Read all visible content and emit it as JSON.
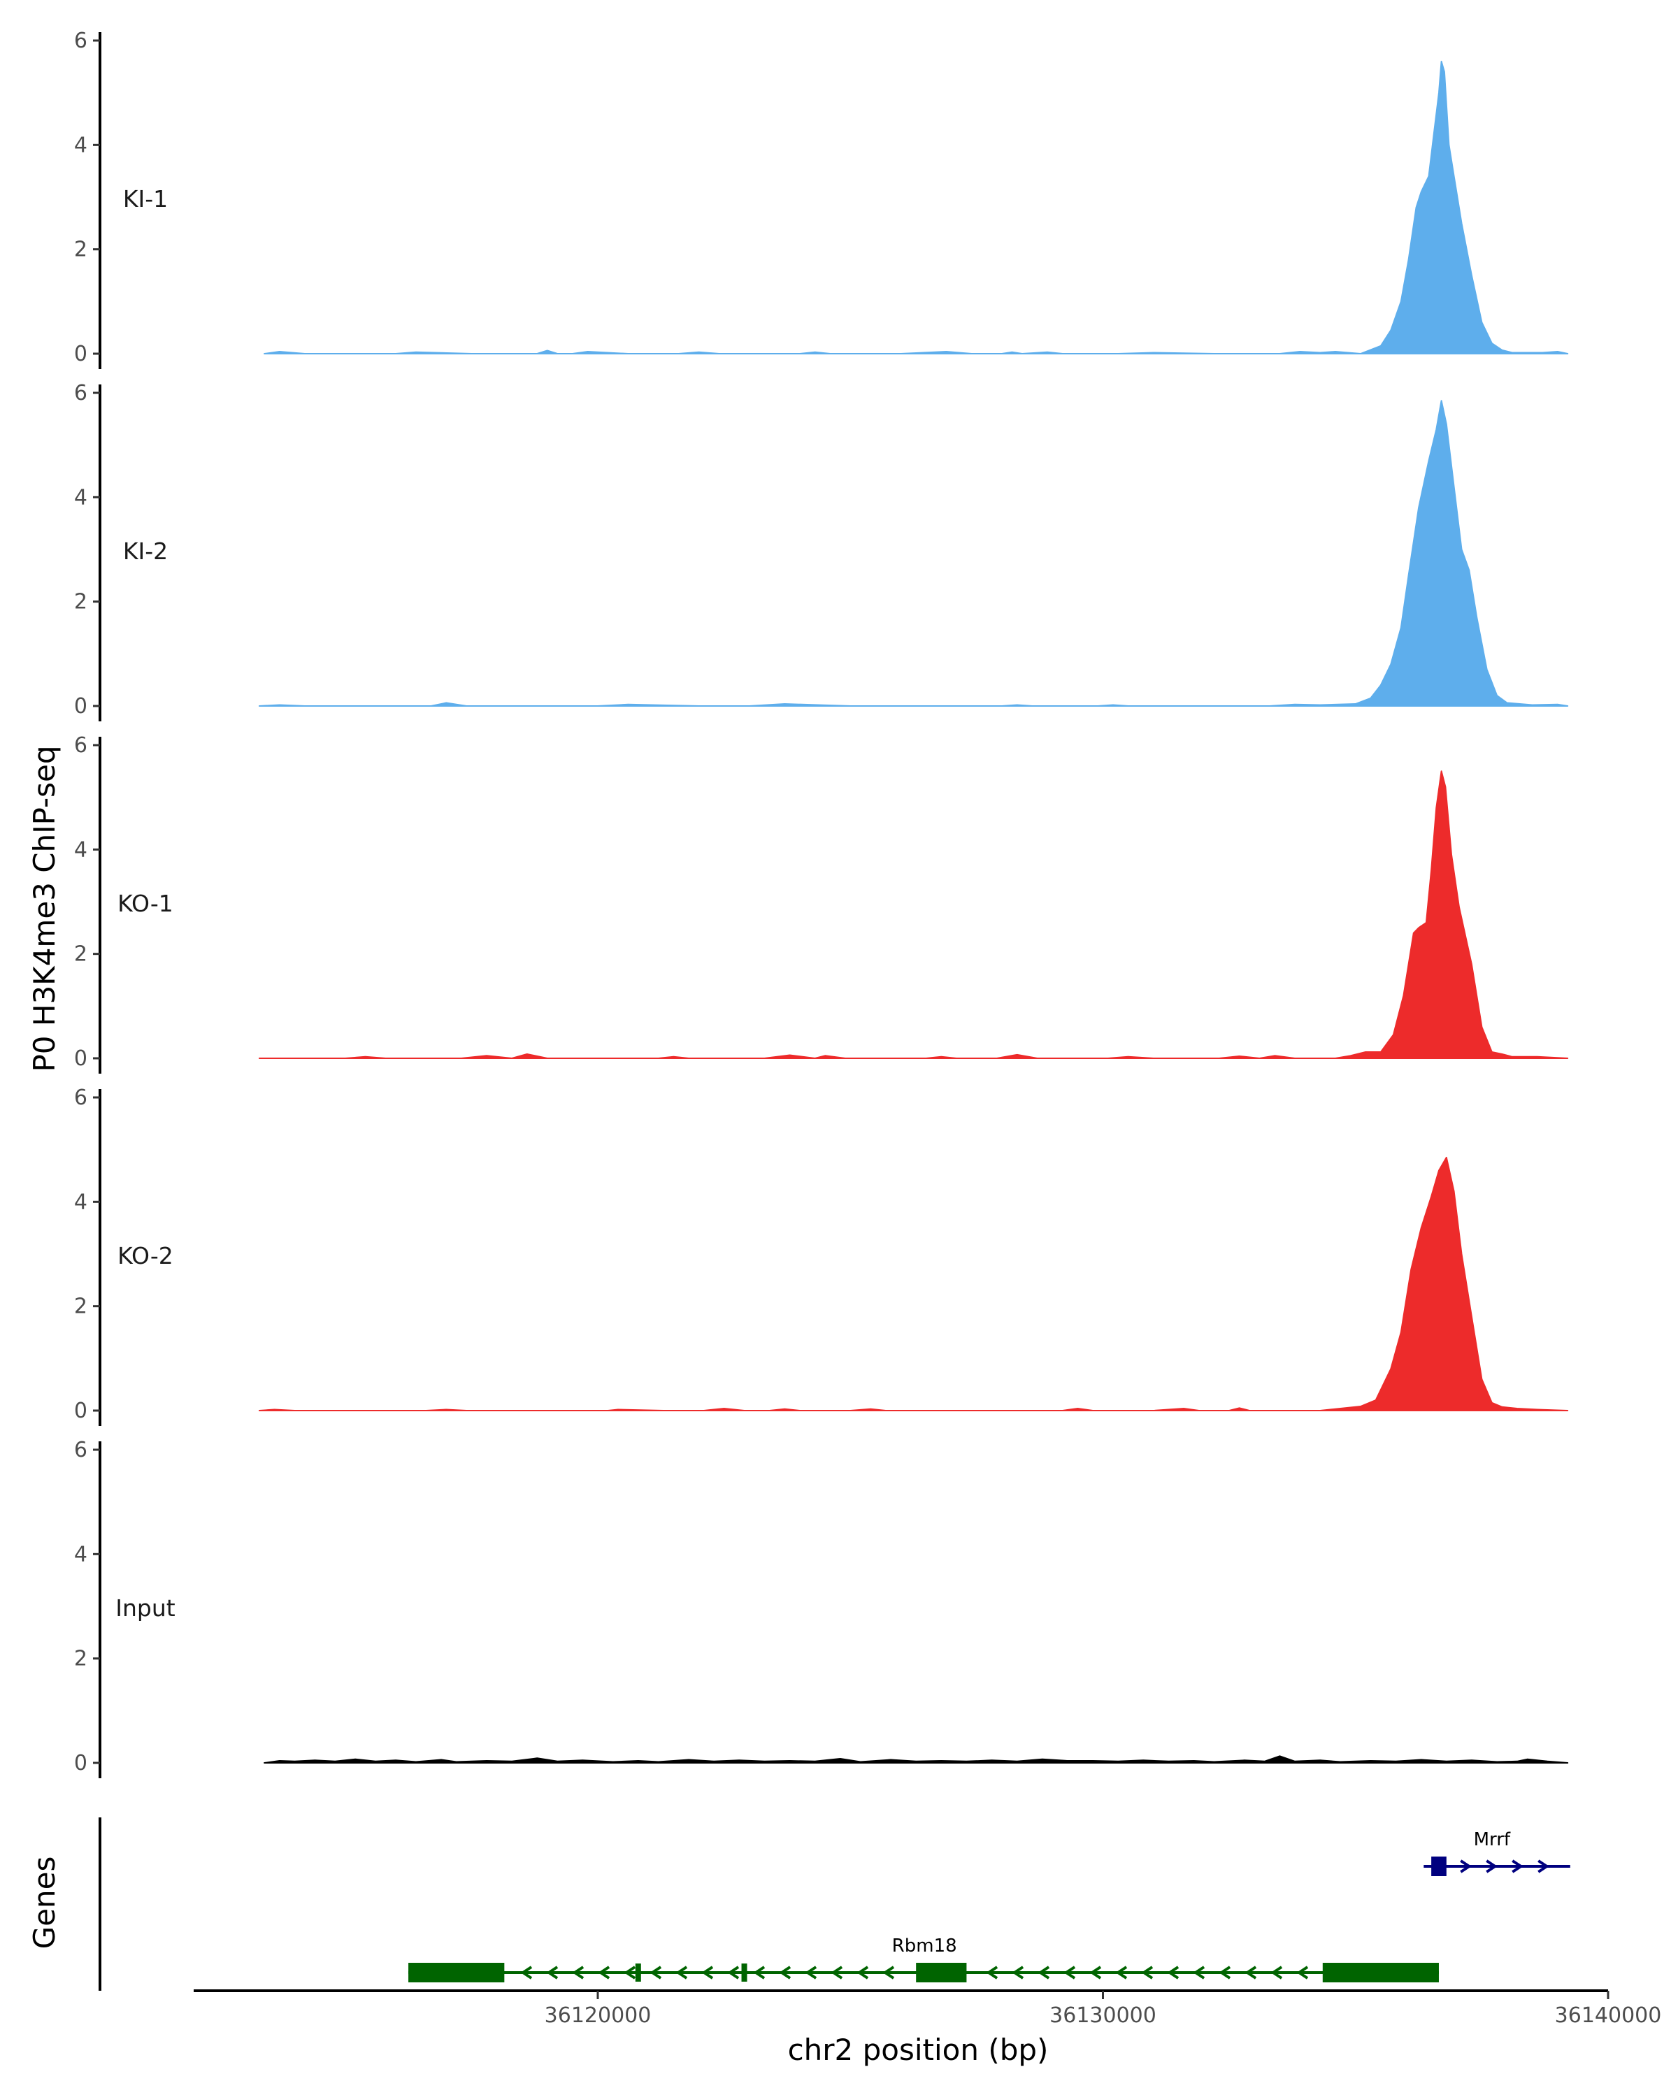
{
  "chart_data": {
    "type": "area",
    "ylabel": "P0 H3K4me3 ChIP-seq",
    "xlabel": "chr2 position (bp)",
    "genes_label": "Genes",
    "xlim": [
      36112000,
      36140000
    ],
    "x_ticks": [
      36120000,
      36130000,
      36140000
    ],
    "x_tick_labels": [
      "36120000",
      "36130000",
      "36140000"
    ],
    "ylim": [
      0,
      6
    ],
    "y_ticks": [
      0,
      2,
      4,
      6
    ],
    "y_tick_labels": [
      "0",
      "2",
      "4",
      "6"
    ],
    "grid": false,
    "tracks": [
      {
        "name": "KI-1",
        "color": "#5eaeec",
        "points": [
          [
            36113400,
            0
          ],
          [
            36113700,
            0.04
          ],
          [
            36114200,
            0
          ],
          [
            36116000,
            0
          ],
          [
            36116400,
            0.03
          ],
          [
            36117500,
            0
          ],
          [
            36118800,
            0
          ],
          [
            36119000,
            0.06
          ],
          [
            36119200,
            0
          ],
          [
            36119500,
            0
          ],
          [
            36119800,
            0.04
          ],
          [
            36120600,
            0
          ],
          [
            36121600,
            0
          ],
          [
            36122000,
            0.03
          ],
          [
            36122400,
            0
          ],
          [
            36124000,
            0
          ],
          [
            36124300,
            0.03
          ],
          [
            36124600,
            0
          ],
          [
            36126000,
            0
          ],
          [
            36126900,
            0.04
          ],
          [
            36127400,
            0
          ],
          [
            36128000,
            0
          ],
          [
            36128200,
            0.03
          ],
          [
            36128400,
            0
          ],
          [
            36128900,
            0.03
          ],
          [
            36129200,
            0
          ],
          [
            36130300,
            0
          ],
          [
            36131000,
            0.02
          ],
          [
            36132200,
            0
          ],
          [
            36133500,
            0
          ],
          [
            36133900,
            0.04
          ],
          [
            36134300,
            0.02
          ],
          [
            36134600,
            0.04
          ],
          [
            36135100,
            0
          ],
          [
            36135500,
            0.15
          ],
          [
            36135700,
            0.45
          ],
          [
            36135900,
            1.0
          ],
          [
            36136050,
            1.8
          ],
          [
            36136200,
            2.8
          ],
          [
            36136300,
            3.1
          ],
          [
            36136450,
            3.4
          ],
          [
            36136550,
            4.2
          ],
          [
            36136650,
            5.0
          ],
          [
            36136700,
            5.6
          ],
          [
            36136760,
            5.4
          ],
          [
            36136850,
            4.0
          ],
          [
            36136950,
            3.4
          ],
          [
            36137100,
            2.5
          ],
          [
            36137300,
            1.5
          ],
          [
            36137500,
            0.6
          ],
          [
            36137700,
            0.2
          ],
          [
            36137900,
            0.07
          ],
          [
            36138100,
            0.02
          ],
          [
            36138700,
            0.02
          ],
          [
            36139000,
            0.04
          ],
          [
            36139200,
            0
          ]
        ]
      },
      {
        "name": "KI-2",
        "color": "#5eaeec",
        "points": [
          [
            36113300,
            0
          ],
          [
            36113700,
            0.02
          ],
          [
            36114200,
            0
          ],
          [
            36116700,
            0
          ],
          [
            36117000,
            0.06
          ],
          [
            36117400,
            0
          ],
          [
            36120000,
            0
          ],
          [
            36120600,
            0.03
          ],
          [
            36122000,
            0
          ],
          [
            36123000,
            0
          ],
          [
            36123700,
            0.04
          ],
          [
            36125000,
            0
          ],
          [
            36128000,
            0
          ],
          [
            36128300,
            0.02
          ],
          [
            36128600,
            0
          ],
          [
            36129900,
            0
          ],
          [
            36130200,
            0.02
          ],
          [
            36130500,
            0
          ],
          [
            36133300,
            0
          ],
          [
            36133800,
            0.03
          ],
          [
            36134300,
            0.02
          ],
          [
            36135000,
            0.04
          ],
          [
            36135300,
            0.15
          ],
          [
            36135500,
            0.4
          ],
          [
            36135700,
            0.8
          ],
          [
            36135900,
            1.5
          ],
          [
            36136050,
            2.5
          ],
          [
            36136250,
            3.8
          ],
          [
            36136450,
            4.7
          ],
          [
            36136600,
            5.3
          ],
          [
            36136700,
            5.85
          ],
          [
            36136800,
            5.4
          ],
          [
            36136950,
            4.2
          ],
          [
            36137100,
            3.0
          ],
          [
            36137250,
            2.6
          ],
          [
            36137400,
            1.7
          ],
          [
            36137600,
            0.7
          ],
          [
            36137800,
            0.2
          ],
          [
            36138000,
            0.06
          ],
          [
            36138500,
            0.02
          ],
          [
            36139000,
            0.03
          ],
          [
            36139200,
            0
          ]
        ]
      },
      {
        "name": "KO-1",
        "color": "#ed2b2b",
        "points": [
          [
            36113300,
            0
          ],
          [
            36115000,
            0
          ],
          [
            36115400,
            0.03
          ],
          [
            36115800,
            0
          ],
          [
            36117300,
            0
          ],
          [
            36117800,
            0.05
          ],
          [
            36118300,
            0
          ],
          [
            36118600,
            0.08
          ],
          [
            36119000,
            0
          ],
          [
            36121200,
            0
          ],
          [
            36121500,
            0.03
          ],
          [
            36121800,
            0
          ],
          [
            36123300,
            0
          ],
          [
            36123800,
            0.06
          ],
          [
            36124300,
            0
          ],
          [
            36124500,
            0.05
          ],
          [
            36124900,
            0
          ],
          [
            36126500,
            0
          ],
          [
            36126800,
            0.03
          ],
          [
            36127100,
            0
          ],
          [
            36127900,
            0
          ],
          [
            36128300,
            0.07
          ],
          [
            36128700,
            0
          ],
          [
            36130100,
            0
          ],
          [
            36130500,
            0.03
          ],
          [
            36131000,
            0
          ],
          [
            36132300,
            0
          ],
          [
            36132700,
            0.04
          ],
          [
            36133100,
            0
          ],
          [
            36133400,
            0.05
          ],
          [
            36133800,
            0
          ],
          [
            36134600,
            0
          ],
          [
            36134900,
            0.05
          ],
          [
            36135200,
            0.12
          ],
          [
            36135500,
            0.12
          ],
          [
            36135750,
            0.45
          ],
          [
            36135950,
            1.2
          ],
          [
            36136150,
            2.4
          ],
          [
            36136250,
            2.5
          ],
          [
            36136400,
            2.6
          ],
          [
            36136500,
            3.6
          ],
          [
            36136600,
            4.8
          ],
          [
            36136700,
            5.5
          ],
          [
            36136780,
            5.2
          ],
          [
            36136900,
            3.9
          ],
          [
            36137050,
            2.9
          ],
          [
            36137300,
            1.8
          ],
          [
            36137500,
            0.6
          ],
          [
            36137700,
            0.12
          ],
          [
            36137900,
            0.08
          ],
          [
            36138100,
            0.03
          ],
          [
            36138600,
            0.03
          ],
          [
            36139200,
            0
          ]
        ]
      },
      {
        "name": "KO-2",
        "color": "#ed2b2b",
        "points": [
          [
            36113300,
            0
          ],
          [
            36113600,
            0.02
          ],
          [
            36114000,
            0
          ],
          [
            36116600,
            0
          ],
          [
            36117000,
            0.02
          ],
          [
            36117400,
            0
          ],
          [
            36120200,
            0
          ],
          [
            36120400,
            0.02
          ],
          [
            36121300,
            0
          ],
          [
            36122100,
            0
          ],
          [
            36122500,
            0.04
          ],
          [
            36122900,
            0
          ],
          [
            36123400,
            0
          ],
          [
            36123700,
            0.03
          ],
          [
            36124000,
            0
          ],
          [
            36125000,
            0
          ],
          [
            36125400,
            0.03
          ],
          [
            36125700,
            0
          ],
          [
            36129200,
            0
          ],
          [
            36129500,
            0.04
          ],
          [
            36129800,
            0
          ],
          [
            36131000,
            0
          ],
          [
            36131600,
            0.04
          ],
          [
            36131900,
            0
          ],
          [
            36132500,
            0
          ],
          [
            36132700,
            0.05
          ],
          [
            36132900,
            0
          ],
          [
            36134300,
            0
          ],
          [
            36134700,
            0.04
          ],
          [
            36135100,
            0.08
          ],
          [
            36135400,
            0.2
          ],
          [
            36135700,
            0.8
          ],
          [
            36135900,
            1.5
          ],
          [
            36136100,
            2.7
          ],
          [
            36136300,
            3.5
          ],
          [
            36136500,
            4.1
          ],
          [
            36136650,
            4.6
          ],
          [
            36136800,
            4.85
          ],
          [
            36136950,
            4.2
          ],
          [
            36137100,
            3.0
          ],
          [
            36137300,
            1.8
          ],
          [
            36137500,
            0.6
          ],
          [
            36137700,
            0.15
          ],
          [
            36137900,
            0.07
          ],
          [
            36138200,
            0.04
          ],
          [
            36138600,
            0.02
          ],
          [
            36139200,
            0
          ]
        ]
      },
      {
        "name": "Input",
        "color": "#000000",
        "points": [
          [
            36113400,
            0
          ],
          [
            36113700,
            0.04
          ],
          [
            36114000,
            0.03
          ],
          [
            36114400,
            0.05
          ],
          [
            36114800,
            0.03
          ],
          [
            36115200,
            0.07
          ],
          [
            36115600,
            0.03
          ],
          [
            36116000,
            0.05
          ],
          [
            36116400,
            0.02
          ],
          [
            36116900,
            0.06
          ],
          [
            36117200,
            0.02
          ],
          [
            36117800,
            0.04
          ],
          [
            36118300,
            0.03
          ],
          [
            36118800,
            0.09
          ],
          [
            36119200,
            0.03
          ],
          [
            36119700,
            0.05
          ],
          [
            36120300,
            0.02
          ],
          [
            36120800,
            0.04
          ],
          [
            36121200,
            0.02
          ],
          [
            36121800,
            0.06
          ],
          [
            36122300,
            0.03
          ],
          [
            36122800,
            0.05
          ],
          [
            36123300,
            0.03
          ],
          [
            36123800,
            0.04
          ],
          [
            36124300,
            0.03
          ],
          [
            36124800,
            0.08
          ],
          [
            36125200,
            0.02
          ],
          [
            36125800,
            0.06
          ],
          [
            36126300,
            0.03
          ],
          [
            36126800,
            0.04
          ],
          [
            36127300,
            0.03
          ],
          [
            36127800,
            0.05
          ],
          [
            36128300,
            0.03
          ],
          [
            36128800,
            0.07
          ],
          [
            36129300,
            0.04
          ],
          [
            36129800,
            0.04
          ],
          [
            36130300,
            0.03
          ],
          [
            36130800,
            0.05
          ],
          [
            36131300,
            0.03
          ],
          [
            36131800,
            0.04
          ],
          [
            36132200,
            0.02
          ],
          [
            36132800,
            0.05
          ],
          [
            36133200,
            0.03
          ],
          [
            36133500,
            0.13
          ],
          [
            36133800,
            0.03
          ],
          [
            36134300,
            0.05
          ],
          [
            36134700,
            0.02
          ],
          [
            36135300,
            0.04
          ],
          [
            36135800,
            0.03
          ],
          [
            36136300,
            0.06
          ],
          [
            36136800,
            0.03
          ],
          [
            36137300,
            0.05
          ],
          [
            36137800,
            0.02
          ],
          [
            36138200,
            0.03
          ],
          [
            36138400,
            0.07
          ],
          [
            36138800,
            0.03
          ],
          [
            36139200,
            0
          ]
        ]
      }
    ],
    "genes": [
      {
        "name": "Rbm18",
        "strand": "-",
        "color": "#006400",
        "row": 2,
        "start": 36116250,
        "end": 36136650,
        "exons": [
          [
            36116250,
            36118150
          ],
          [
            36126300,
            36127300
          ],
          [
            36134350,
            36136650
          ]
        ],
        "markers": [
          36120800,
          36122900
        ]
      },
      {
        "name": "Mrrf",
        "strand": "+",
        "color": "#00007f",
        "row": 1,
        "start": 36136350,
        "end": 36139250,
        "exons": [
          [
            36136500,
            36136800
          ]
        ],
        "markers": []
      }
    ]
  }
}
